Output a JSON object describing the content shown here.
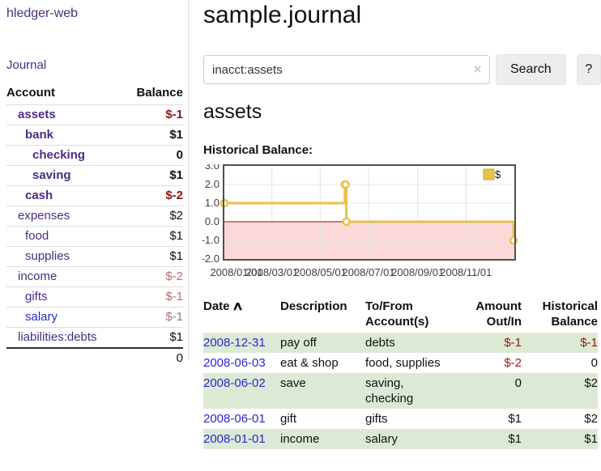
{
  "sidebar": {
    "brand": "hledger-web",
    "journal_link": "Journal",
    "accounts_header": {
      "account": "Account",
      "balance": "Balance"
    },
    "accounts": [
      {
        "name": "assets",
        "balance": "$-1"
      },
      {
        "name": "bank",
        "balance": "$1"
      },
      {
        "name": "checking",
        "balance": "0"
      },
      {
        "name": "saving",
        "balance": "$1"
      },
      {
        "name": "cash",
        "balance": "$-2"
      },
      {
        "name": "expenses",
        "balance": "$2"
      },
      {
        "name": "food",
        "balance": "$1"
      },
      {
        "name": "supplies",
        "balance": "$1"
      },
      {
        "name": "income",
        "balance": "$-2"
      },
      {
        "name": "gifts",
        "balance": "$-1"
      },
      {
        "name": "salary",
        "balance": "$-1"
      },
      {
        "name": "liabilities:debts",
        "balance": "$1"
      }
    ],
    "total": "0"
  },
  "main": {
    "title": "sample.journal",
    "search": {
      "value": "inacct:assets",
      "clear_icon": "✕",
      "search_button": "Search",
      "help_button": "?"
    },
    "account_heading": "assets",
    "chart_title": "Historical Balance:"
  },
  "register": {
    "headers": {
      "date": "Date",
      "description": "Description",
      "accounts": "To/From Account(s)",
      "amount": "Amount Out/In",
      "balance": "Historical Balance"
    },
    "sort_icon": "∧",
    "rows": [
      {
        "date": "2008-12-31",
        "description": "pay off",
        "accounts": "debts",
        "amount": "$-1",
        "balance": "$-1"
      },
      {
        "date": "2008-06-03",
        "description": "eat & shop",
        "accounts": "food, supplies",
        "amount": "$-2",
        "balance": "0"
      },
      {
        "date": "2008-06-02",
        "description": "save",
        "accounts": "saving, checking",
        "amount": "0",
        "balance": "$2"
      },
      {
        "date": "2008-06-01",
        "description": "gift",
        "accounts": "gifts",
        "amount": "$1",
        "balance": "$2"
      },
      {
        "date": "2008-01-01",
        "description": "income",
        "accounts": "salary",
        "amount": "$1",
        "balance": "$1"
      }
    ]
  },
  "chart_data": {
    "type": "line",
    "style": "step",
    "title": "Historical Balance:",
    "series": [
      {
        "name": "$",
        "color": "#e8c24a",
        "points": [
          [
            "2008-01-01",
            1
          ],
          [
            "2008-06-01",
            2
          ],
          [
            "2008-06-02",
            2
          ],
          [
            "2008-06-03",
            0
          ],
          [
            "2008-12-31",
            -1
          ]
        ]
      }
    ],
    "x_ticks": [
      "2008/01/01",
      "2008/03/01",
      "2008/05/01",
      "2008/07/01",
      "2008/09/01",
      "2008/11/01"
    ],
    "y_ticks": [
      3,
      2,
      1,
      0,
      -1,
      -2
    ],
    "xlim": [
      "2008-01-01",
      "2009-01-01"
    ],
    "ylim": [
      -2,
      3
    ],
    "grid": true,
    "legend_position": "top-right",
    "negative_region_color": "#fbd9d9",
    "zero_line_color": "#8b1010",
    "grid_color": "#e4e4e4",
    "border_color": "#4f4f4f",
    "tick_label_color": "#3e3e3e"
  },
  "colors": {
    "link_purple": "#4b2d83",
    "link_blue": "#2727d4",
    "negative_strong": "#8e1212",
    "negative_soft": "#b76c6c",
    "register_negative": "#96181b",
    "row_green": "#dcead5",
    "chart_gold": "#e8c24a"
  }
}
